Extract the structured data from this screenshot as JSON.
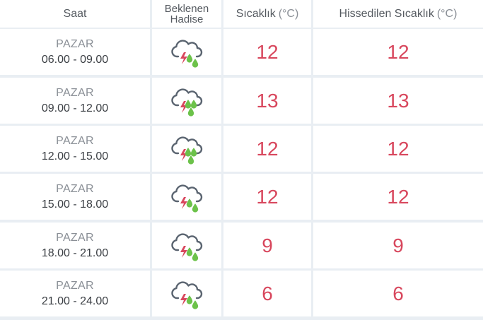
{
  "header": {
    "time": "Saat",
    "event_line1": "Beklenen",
    "event_line2": "Hadise",
    "temp": "Sıcaklık",
    "temp_unit": "(°C)",
    "feels": "Hissedilen Sıcaklık",
    "feels_unit": "(°C)"
  },
  "rows": [
    {
      "day": "PAZAR",
      "range": "06.00 - 09.00",
      "icon": "storm-rain-icon",
      "temp": "12",
      "feels": "12",
      "drops": 2
    },
    {
      "day": "PAZAR",
      "range": "09.00 - 12.00",
      "icon": "storm-heavy-rain-icon",
      "temp": "13",
      "feels": "13",
      "drops": 3
    },
    {
      "day": "PAZAR",
      "range": "12.00 - 15.00",
      "icon": "storm-heavy-rain-icon",
      "temp": "12",
      "feels": "12",
      "drops": 3
    },
    {
      "day": "PAZAR",
      "range": "15.00 - 18.00",
      "icon": "storm-rain-icon",
      "temp": "12",
      "feels": "12",
      "drops": 2
    },
    {
      "day": "PAZAR",
      "range": "18.00 - 21.00",
      "icon": "storm-rain-icon",
      "temp": "9",
      "feels": "9",
      "drops": 2
    },
    {
      "day": "PAZAR",
      "range": "21.00 - 24.00",
      "icon": "storm-rain-icon",
      "temp": "6",
      "feels": "6",
      "drops": 2
    }
  ],
  "colors": {
    "temp": "#d8475d",
    "cloud": "#5a6470",
    "lightning": "#d8475d",
    "rain": "#6cc24a"
  }
}
